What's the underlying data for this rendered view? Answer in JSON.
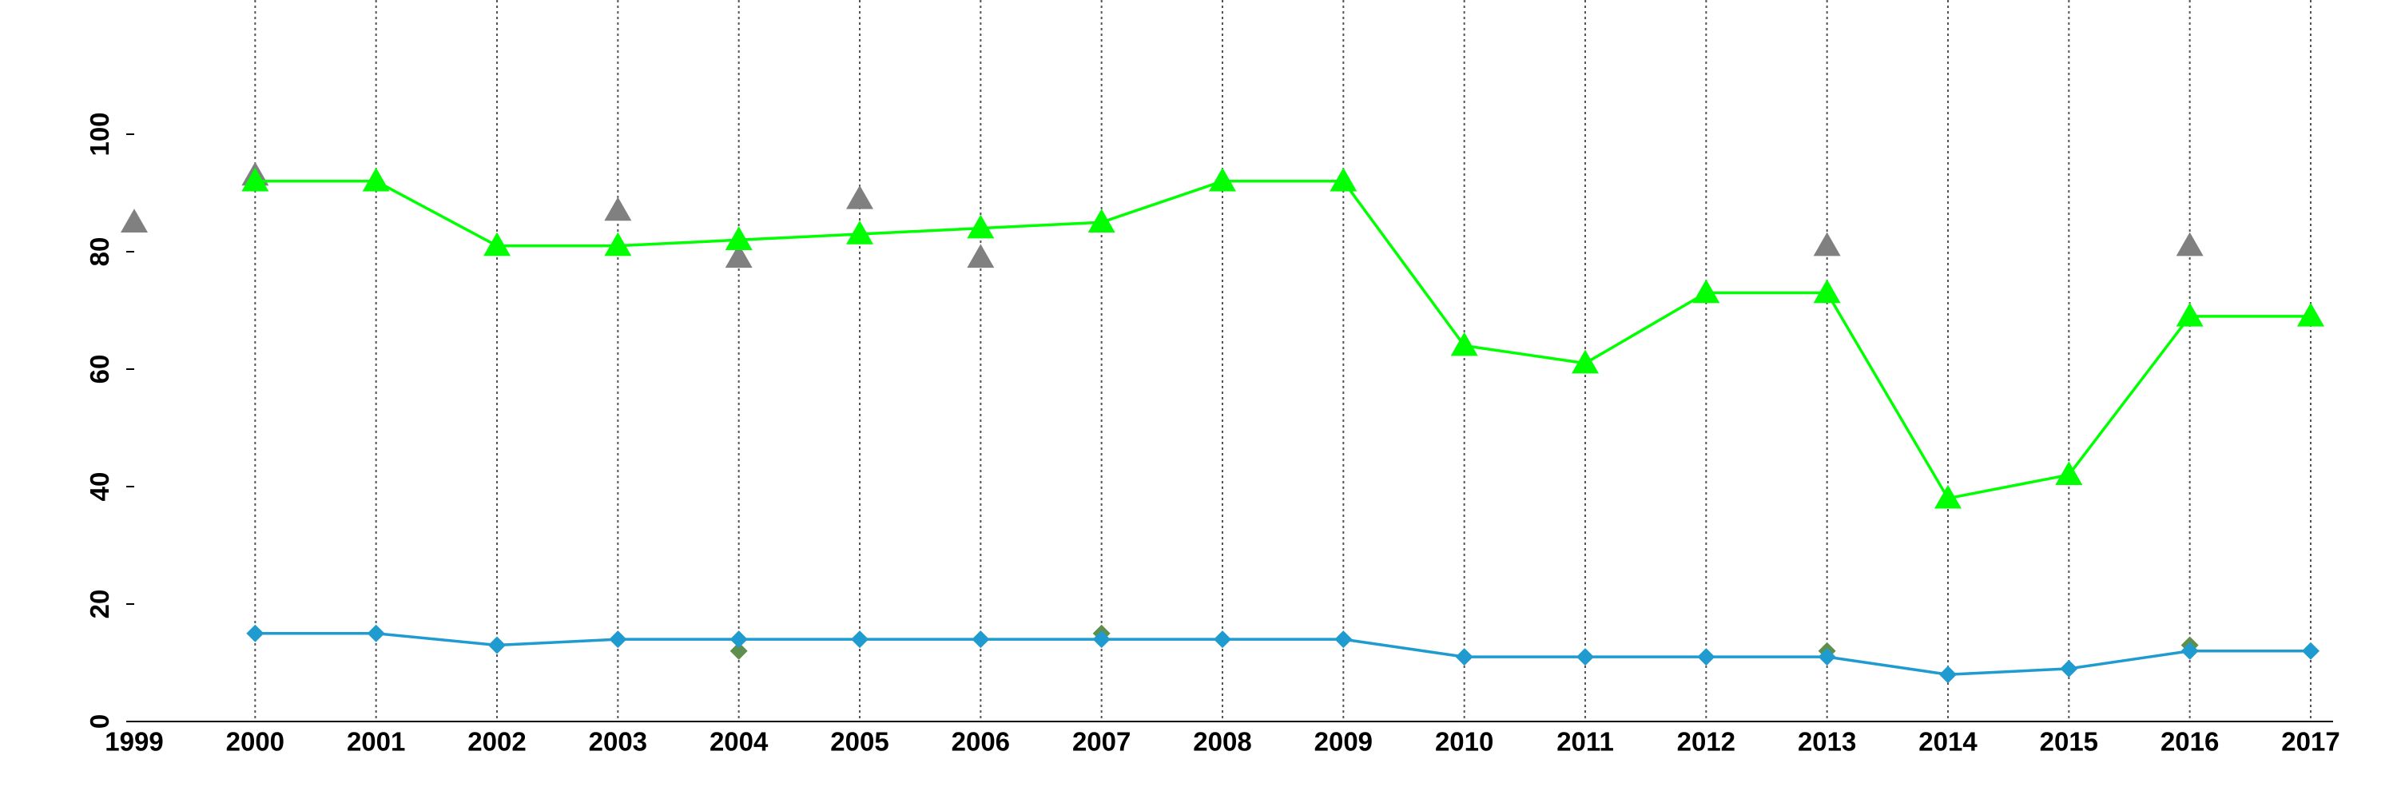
{
  "chart_data": {
    "type": "line",
    "x": [
      1999,
      2000,
      2001,
      2002,
      2003,
      2004,
      2005,
      2006,
      2007,
      2008,
      2009,
      2010,
      2011,
      2012,
      2013,
      2014,
      2015,
      2016,
      2017
    ],
    "xlim": [
      1999,
      2017
    ],
    "xticks": [
      1999,
      2000,
      2001,
      2002,
      2003,
      2004,
      2005,
      2006,
      2007,
      2008,
      2009,
      2010,
      2011,
      2012,
      2013,
      2014,
      2015,
      2016,
      2017
    ],
    "ylim": [
      0,
      100
    ],
    "yticks": [
      0,
      20,
      40,
      60,
      80,
      100
    ],
    "grid": true,
    "series": [
      {
        "color": "#808080",
        "marker": "triangle",
        "line": false,
        "values": [
          85,
          93,
          null,
          null,
          87,
          79,
          89,
          79,
          null,
          null,
          null,
          null,
          null,
          null,
          81,
          null,
          null,
          81,
          null
        ]
      },
      {
        "color": "#5f8f4f",
        "marker": "diamond",
        "line": false,
        "values": [
          null,
          null,
          null,
          null,
          null,
          12,
          null,
          null,
          15,
          null,
          null,
          null,
          null,
          null,
          12,
          null,
          null,
          13,
          null
        ]
      },
      {
        "color": "#00ff00",
        "marker": "triangle",
        "line": true,
        "values": [
          null,
          92,
          92,
          81,
          81,
          82,
          83,
          84,
          85,
          92,
          92,
          64,
          61,
          73,
          73,
          38,
          42,
          69,
          69
        ]
      },
      {
        "color": "#1f9bcf",
        "marker": "diamond",
        "line": true,
        "values": [
          null,
          15,
          15,
          13,
          14,
          14,
          14,
          14,
          14,
          14,
          14,
          11,
          11,
          11,
          11,
          8,
          9,
          12,
          12
        ]
      }
    ]
  }
}
